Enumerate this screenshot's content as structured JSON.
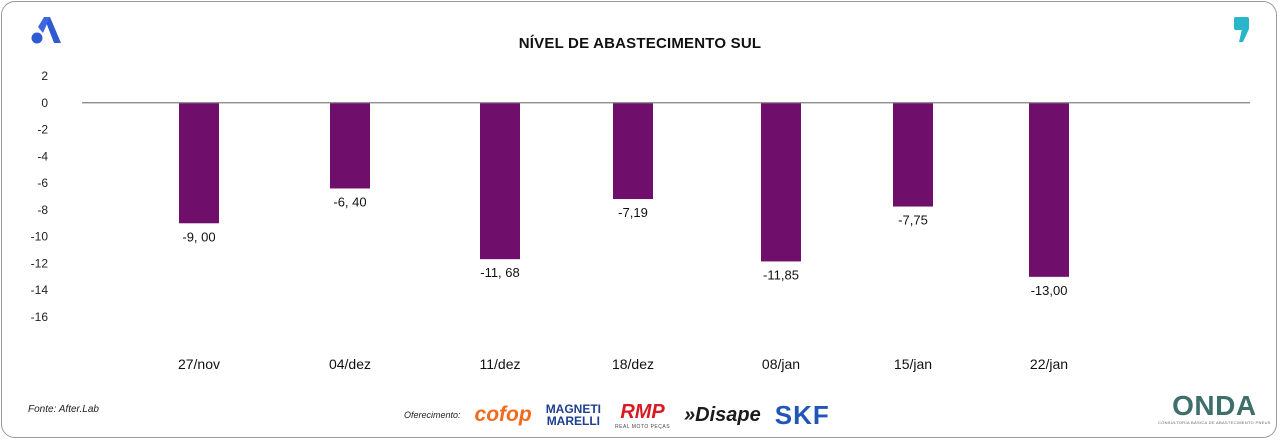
{
  "title": "NÍVEL DE ABASTECIMENTO SUL",
  "source": "Fonte: After.Lab",
  "sponsors": {
    "label": "Oferecimento:",
    "cofop": "cofop",
    "magneti_line1": "MAGNETI",
    "magneti_line2": "MARELLI",
    "rmp": "RMP",
    "rmp_sub": "REAL MOTO PEÇAS",
    "disape": "»Disape",
    "skf": "SKF"
  },
  "onda": {
    "word": "ONDA",
    "sub": "CONSULTORIA BÁSICA DE ABASTECIMENTO PNEUS"
  },
  "icons": {
    "brand": "after-lab-a-icon",
    "quote": "comma-quote-icon"
  },
  "colors": {
    "bar": "#6f0f6b",
    "zero_line": "#808080",
    "text": "#111111"
  },
  "chart_data": {
    "type": "bar",
    "title": "NÍVEL DE ABASTECIMENTO SUL",
    "categories": [
      "27/nov",
      "04/dez",
      "11/dez",
      "18/dez",
      "08/jan",
      "15/jan",
      "22/jan"
    ],
    "values": [
      -9.0,
      -6.4,
      -11.68,
      -7.19,
      -11.85,
      -7.75,
      -13.0
    ],
    "data_labels": [
      "-9, 00",
      "-6, 40",
      "-11, 68",
      "-7,19",
      "-11,85",
      "-7,75",
      "-13,00"
    ],
    "yticks": [
      "2",
      "0",
      "-2",
      "-4",
      "-6",
      "-8",
      "-10",
      "-12",
      "-14",
      "-16"
    ],
    "ylim": [
      -16,
      2
    ],
    "grid": false,
    "xlabel": "",
    "ylabel": ""
  }
}
